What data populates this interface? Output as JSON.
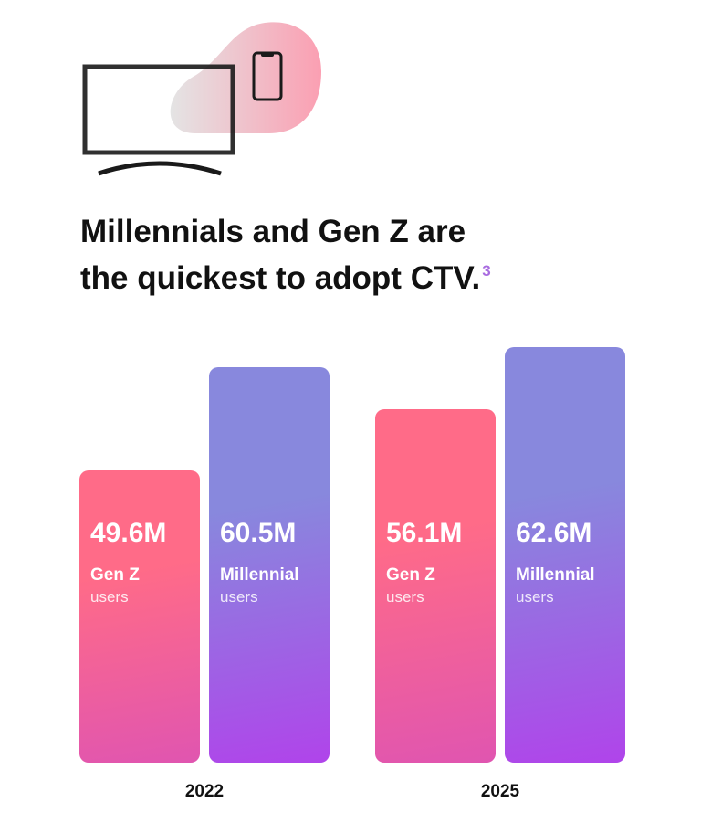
{
  "title_lines": [
    "Millennials and Gen Z are",
    "the quickest to adopt CTV."
  ],
  "footnote_marker": "3",
  "icons": [
    "tv-icon",
    "smartphone-icon"
  ],
  "colors": {
    "gen_z_top": "#ff6b88",
    "gen_z_bottom": "#e055b0",
    "millennial_top": "#8888dd",
    "millennial_bottom": "#b044ea",
    "blob": "#f9a0b0",
    "footnote": "#a86be0"
  },
  "chart_data": {
    "type": "bar",
    "categories": [
      "2022",
      "2025"
    ],
    "series": [
      {
        "name": "Gen Z",
        "sublabel": "users",
        "values": [
          49.6,
          56.1
        ],
        "labels": [
          "49.6M",
          "56.1M"
        ]
      },
      {
        "name": "Millennial",
        "sublabel": "users",
        "values": [
          60.5,
          62.6
        ],
        "labels": [
          "60.5M",
          "62.6M"
        ]
      }
    ],
    "unit": "M",
    "ylim": [
      19,
      64
    ],
    "grid": false,
    "title": "Millennials and Gen Z are the quickest to adopt CTV."
  }
}
